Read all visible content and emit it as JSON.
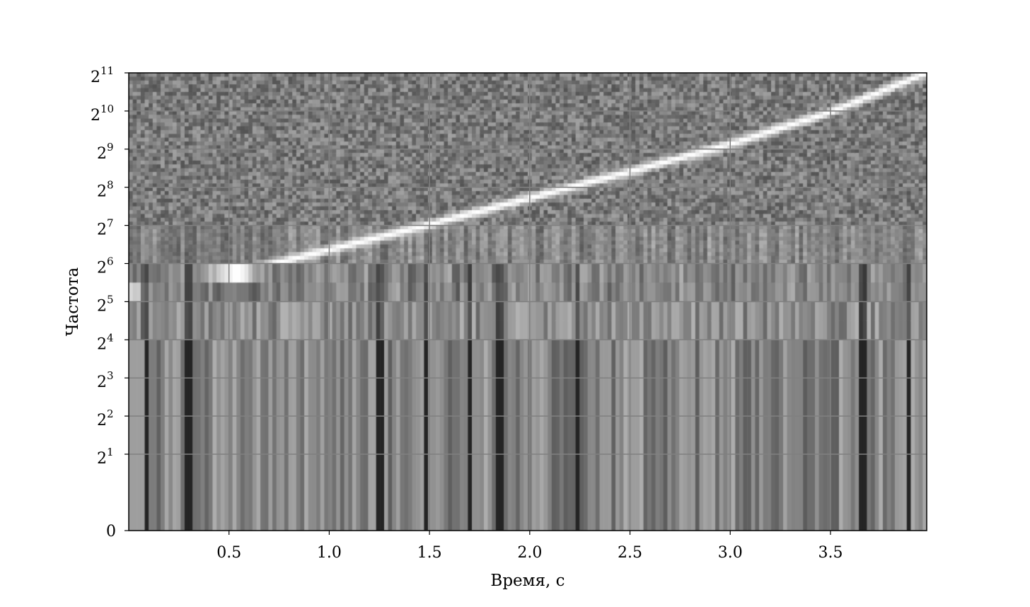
{
  "chart_data": {
    "type": "heatmap",
    "title": "",
    "xlabel": "Время, с",
    "ylabel": "Частота",
    "xlim": [
      0,
      3.98
    ],
    "y_scale": "symlog2",
    "ylim": [
      0,
      2048
    ],
    "x_ticks": [
      {
        "value": 0.5,
        "label": "0.5"
      },
      {
        "value": 1.0,
        "label": "1.0"
      },
      {
        "value": 1.5,
        "label": "1.5"
      },
      {
        "value": 2.0,
        "label": "2.0"
      },
      {
        "value": 2.5,
        "label": "2.5"
      },
      {
        "value": 3.0,
        "label": "3.0"
      },
      {
        "value": 3.5,
        "label": "3.5"
      }
    ],
    "y_ticks": [
      {
        "value": 0,
        "base": "0",
        "exp": ""
      },
      {
        "value": 2,
        "base": "2",
        "exp": "1"
      },
      {
        "value": 4,
        "base": "2",
        "exp": "2"
      },
      {
        "value": 8,
        "base": "2",
        "exp": "3"
      },
      {
        "value": 16,
        "base": "2",
        "exp": "4"
      },
      {
        "value": 32,
        "base": "2",
        "exp": "5"
      },
      {
        "value": 64,
        "base": "2",
        "exp": "6"
      },
      {
        "value": 128,
        "base": "2",
        "exp": "7"
      },
      {
        "value": 256,
        "base": "2",
        "exp": "8"
      },
      {
        "value": 512,
        "base": "2",
        "exp": "9"
      },
      {
        "value": 1024,
        "base": "2",
        "exp": "10"
      },
      {
        "value": 2048,
        "base": "2",
        "exp": "11"
      }
    ],
    "grid": true,
    "colormap": "grayscale",
    "ridge": [
      {
        "t": 0.0,
        "f": 40
      },
      {
        "t": 0.5,
        "f": 52
      },
      {
        "t": 1.0,
        "f": 82
      },
      {
        "t": 1.5,
        "f": 130
      },
      {
        "t": 2.0,
        "f": 210
      },
      {
        "t": 2.5,
        "f": 340
      },
      {
        "t": 3.0,
        "f": 560
      },
      {
        "t": 3.5,
        "f": 1000
      },
      {
        "t": 3.98,
        "f": 2048
      }
    ],
    "dark_bands_t": [
      0.07,
      0.29,
      1.24,
      1.47,
      1.69,
      1.84,
      2.23,
      3.65,
      3.88
    ]
  }
}
